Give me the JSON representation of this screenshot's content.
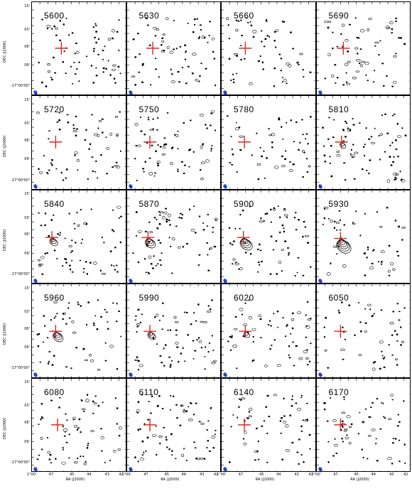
{
  "figure": {
    "panels": [
      {
        "velocity_label": "5600"
      },
      {
        "velocity_label": "5630"
      },
      {
        "velocity_label": "5660"
      },
      {
        "velocity_label": "5690"
      },
      {
        "velocity_label": "5720"
      },
      {
        "velocity_label": "5750"
      },
      {
        "velocity_label": "5780"
      },
      {
        "velocity_label": "5810"
      },
      {
        "velocity_label": "5840"
      },
      {
        "velocity_label": "5870"
      },
      {
        "velocity_label": "5900"
      },
      {
        "velocity_label": "5930"
      },
      {
        "velocity_label": "5960"
      },
      {
        "velocity_label": "5990"
      },
      {
        "velocity_label": "6020"
      },
      {
        "velocity_label": "6050"
      },
      {
        "velocity_label": "6080"
      },
      {
        "velocity_label": "6110"
      },
      {
        "velocity_label": "6140"
      },
      {
        "velocity_label": "6170"
      }
    ],
    "y_axis": {
      "label": "DEC (J2000)",
      "tick_labels": [
        "15'",
        "03'",
        "06'",
        "09'",
        "-17°00'00\""
      ]
    },
    "x_axis": {
      "label": "RA (J2000)",
      "tick_labels": [
        "1°00'",
        "47",
        "45",
        "44",
        "43",
        "42"
      ]
    },
    "colors": {
      "cross": "#d9291c",
      "beam": "#2244cc",
      "contour": "#000000",
      "frame": "#000000",
      "background": "#ffffff"
    }
  }
}
